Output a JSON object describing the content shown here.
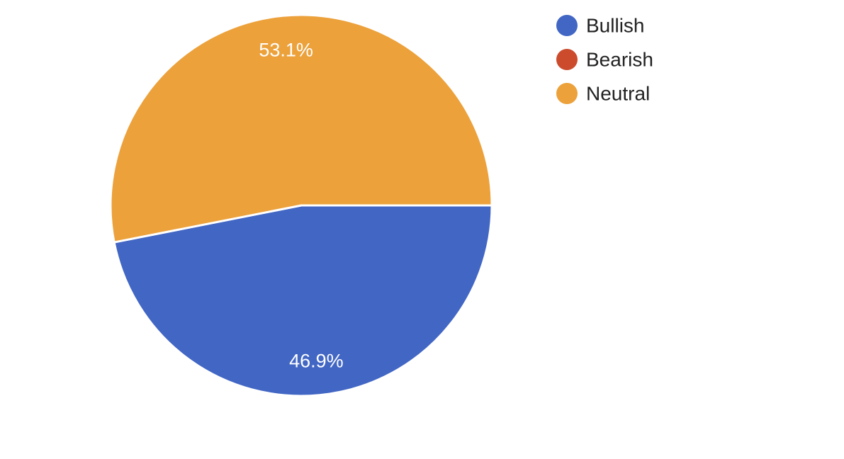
{
  "chart_data": {
    "type": "pie",
    "title": "",
    "legend": "right",
    "slices": [
      {
        "name": "Bullish",
        "value": 46.9,
        "label": "46.9%",
        "color": "#4166C4"
      },
      {
        "name": "Bearish",
        "value": 0,
        "label": "",
        "color": "#CB4B2C"
      },
      {
        "name": "Neutral",
        "value": 53.1,
        "label": "53.1%",
        "color": "#ECA13B"
      }
    ]
  }
}
